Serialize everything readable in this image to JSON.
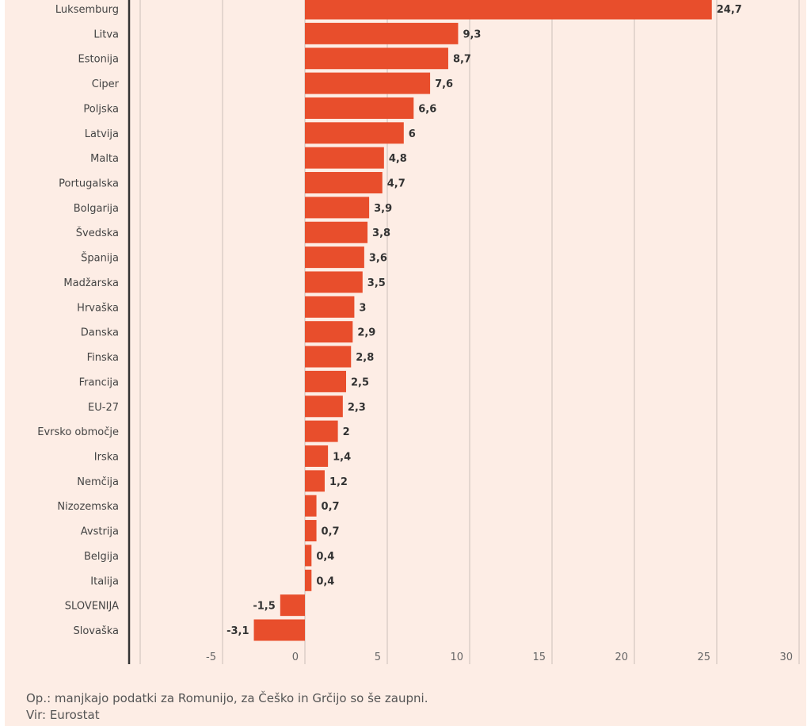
{
  "chart_data": {
    "type": "bar",
    "orientation": "horizontal",
    "categories": [
      "Luksemburg",
      "Litva",
      "Estonija",
      "Ciper",
      "Poljska",
      "Latvija",
      "Malta",
      "Portugalska",
      "Bolgarija",
      "Švedska",
      "Španija",
      "Madžarska",
      "Hrvaška",
      "Danska",
      "Finska",
      "Francija",
      "EU-27",
      "Evrsko območje",
      "Irska",
      "Nemčija",
      "Nizozemska",
      "Avstrija",
      "Belgija",
      "Italija",
      "SLOVENIJA",
      "Slovaška"
    ],
    "values": [
      24.7,
      9.3,
      8.7,
      7.6,
      6.6,
      6,
      4.8,
      4.7,
      3.9,
      3.8,
      3.6,
      3.5,
      3,
      2.9,
      2.8,
      2.5,
      2.3,
      2,
      1.4,
      1.2,
      0.7,
      0.7,
      0.4,
      0.4,
      -1.5,
      -3.1
    ],
    "value_labels": [
      "24,7",
      "9,3",
      "8,7",
      "7,6",
      "6,6",
      "6",
      "4,8",
      "4,7",
      "3,9",
      "3,8",
      "3,6",
      "3,5",
      "3",
      "2,9",
      "2,8",
      "2,5",
      "2,3",
      "2",
      "1,4",
      "1,2",
      "0,7",
      "0,7",
      "0,4",
      "0,4",
      "-1,5",
      "-3,1"
    ],
    "xlim": [
      -10,
      30
    ],
    "xticks": [
      -10,
      -5,
      0,
      5,
      10,
      15,
      20,
      25,
      30
    ],
    "xtick_labels": [
      "",
      "-5",
      "0",
      "5",
      "10",
      "15",
      "20",
      "25",
      "30"
    ],
    "grid": true,
    "bar_color": "#e84e2c",
    "title": "",
    "xlabel": "",
    "ylabel": ""
  },
  "footer": {
    "note": "Op.: manjkajo podatki za Romunijo, za Češko in Grčijo so še zaupni.",
    "source": "Vir: Eurostat"
  }
}
